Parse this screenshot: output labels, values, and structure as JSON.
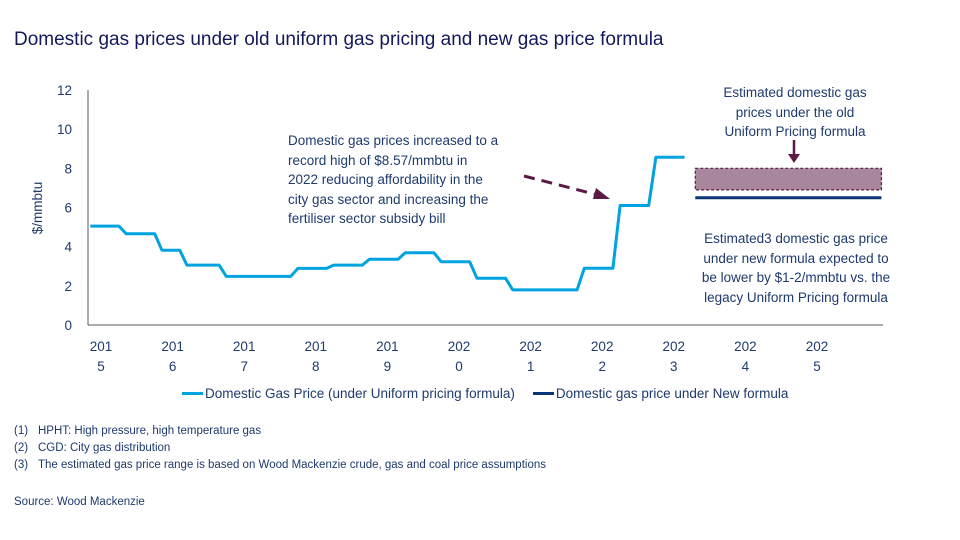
{
  "title": "Domestic gas prices under old uniform gas pricing and new gas price formula",
  "chart_data": {
    "type": "line",
    "title": "Domestic gas prices under old uniform gas pricing and new gas price formula",
    "ylabel": "$/mmbtu",
    "xlabel": "",
    "ylim": [
      0,
      12
    ],
    "yticks": [
      0,
      2,
      4,
      6,
      8,
      10,
      12
    ],
    "xlim": [
      2014.85,
      2025.95
    ],
    "xtick_labels": [
      {
        "x": 2015,
        "line1": "201",
        "line2": "5"
      },
      {
        "x": 2016,
        "line1": "201",
        "line2": "6"
      },
      {
        "x": 2017,
        "line1": "201",
        "line2": "7"
      },
      {
        "x": 2018,
        "line1": "201",
        "line2": "8"
      },
      {
        "x": 2019,
        "line1": "201",
        "line2": "9"
      },
      {
        "x": 2020,
        "line1": "202",
        "line2": "0"
      },
      {
        "x": 2021,
        "line1": "202",
        "line2": "1"
      },
      {
        "x": 2022,
        "line1": "202",
        "line2": "2"
      },
      {
        "x": 2023,
        "line1": "202",
        "line2": "3"
      },
      {
        "x": 2024,
        "line1": "202",
        "line2": "4"
      },
      {
        "x": 2025,
        "line1": "202",
        "line2": "5"
      }
    ],
    "grid": false,
    "legend_position": "bottom",
    "series": [
      {
        "name": "Domestic Gas Price (under Uniform pricing formula)",
        "color": "#00a3e0",
        "style": "step",
        "steps": [
          {
            "x0": 2014.85,
            "x1": 2015.25,
            "y": 5.05
          },
          {
            "x0": 2015.35,
            "x1": 2015.75,
            "y": 4.66
          },
          {
            "x0": 2015.85,
            "x1": 2016.1,
            "y": 3.82
          },
          {
            "x0": 2016.2,
            "x1": 2016.65,
            "y": 3.06
          },
          {
            "x0": 2016.75,
            "x1": 2017.65,
            "y": 2.48
          },
          {
            "x0": 2017.75,
            "x1": 2018.15,
            "y": 2.89
          },
          {
            "x0": 2018.25,
            "x1": 2018.65,
            "y": 3.06
          },
          {
            "x0": 2018.75,
            "x1": 2019.15,
            "y": 3.36
          },
          {
            "x0": 2019.25,
            "x1": 2019.65,
            "y": 3.69
          },
          {
            "x0": 2019.75,
            "x1": 2020.15,
            "y": 3.23
          },
          {
            "x0": 2020.25,
            "x1": 2020.65,
            "y": 2.39
          },
          {
            "x0": 2020.75,
            "x1": 2021.65,
            "y": 1.79
          },
          {
            "x0": 2021.75,
            "x1": 2022.15,
            "y": 2.9
          },
          {
            "x0": 2022.25,
            "x1": 2022.65,
            "y": 6.1
          },
          {
            "x0": 2022.75,
            "x1": 2023.15,
            "y": 8.57
          }
        ]
      },
      {
        "name": "Domestic gas price under New formula",
        "color": "#0c3577",
        "style": "flat",
        "x0": 2023.3,
        "x1": 2025.9,
        "y": 6.5
      }
    ],
    "range_band": {
      "label": "Estimated domestic gas prices under the old Uniform Pricing formula",
      "x0": 2023.3,
      "x1": 2025.9,
      "y_low": 6.9,
      "y_high": 8.0,
      "fill": "#a8869b",
      "border": "#5b1a45"
    },
    "annotations": [
      "Domestic gas prices increased to a record high of $8.57/mmbtu in 2022 reducing affordability in the city gas sector and increasing the fertiliser sector subsidy bill",
      "Estimated domestic gas prices under the old Uniform Pricing formula",
      "Estimated3 domestic gas price under new formula expected to be lower by $1-2/mmbtu vs. the legacy Uniform Pricing formula"
    ]
  },
  "annotations": {
    "record_high": [
      "Domestic gas prices increased to a",
      "record high of $8.57/mmbtu  in",
      "2022 reducing affordability in the",
      "city gas sector and increasing the",
      "fertiliser sector subsidy bill"
    ],
    "old_formula": [
      "Estimated domestic gas",
      "prices under the old",
      "Uniform Pricing formula"
    ],
    "new_formula": [
      "Estimated3 domestic gas price",
      "under new formula expected to",
      "be lower by $1-2/mmbtu  vs. the",
      "legacy Uniform  Pricing formula"
    ]
  },
  "legend": {
    "uniform": "Domestic Gas Price (under Uniform pricing formula)",
    "new": "Domestic gas price under New formula"
  },
  "notes": [
    {
      "num": "(1)",
      "text": "HPHT: High pressure, high temperature gas"
    },
    {
      "num": "(2)",
      "text": "CGD: City gas distribution"
    },
    {
      "num": "(3)",
      "text": "The estimated gas price range is based on Wood Mackenzie crude, gas and coal price assumptions"
    }
  ],
  "source": "Source: Wood Mackenzie"
}
